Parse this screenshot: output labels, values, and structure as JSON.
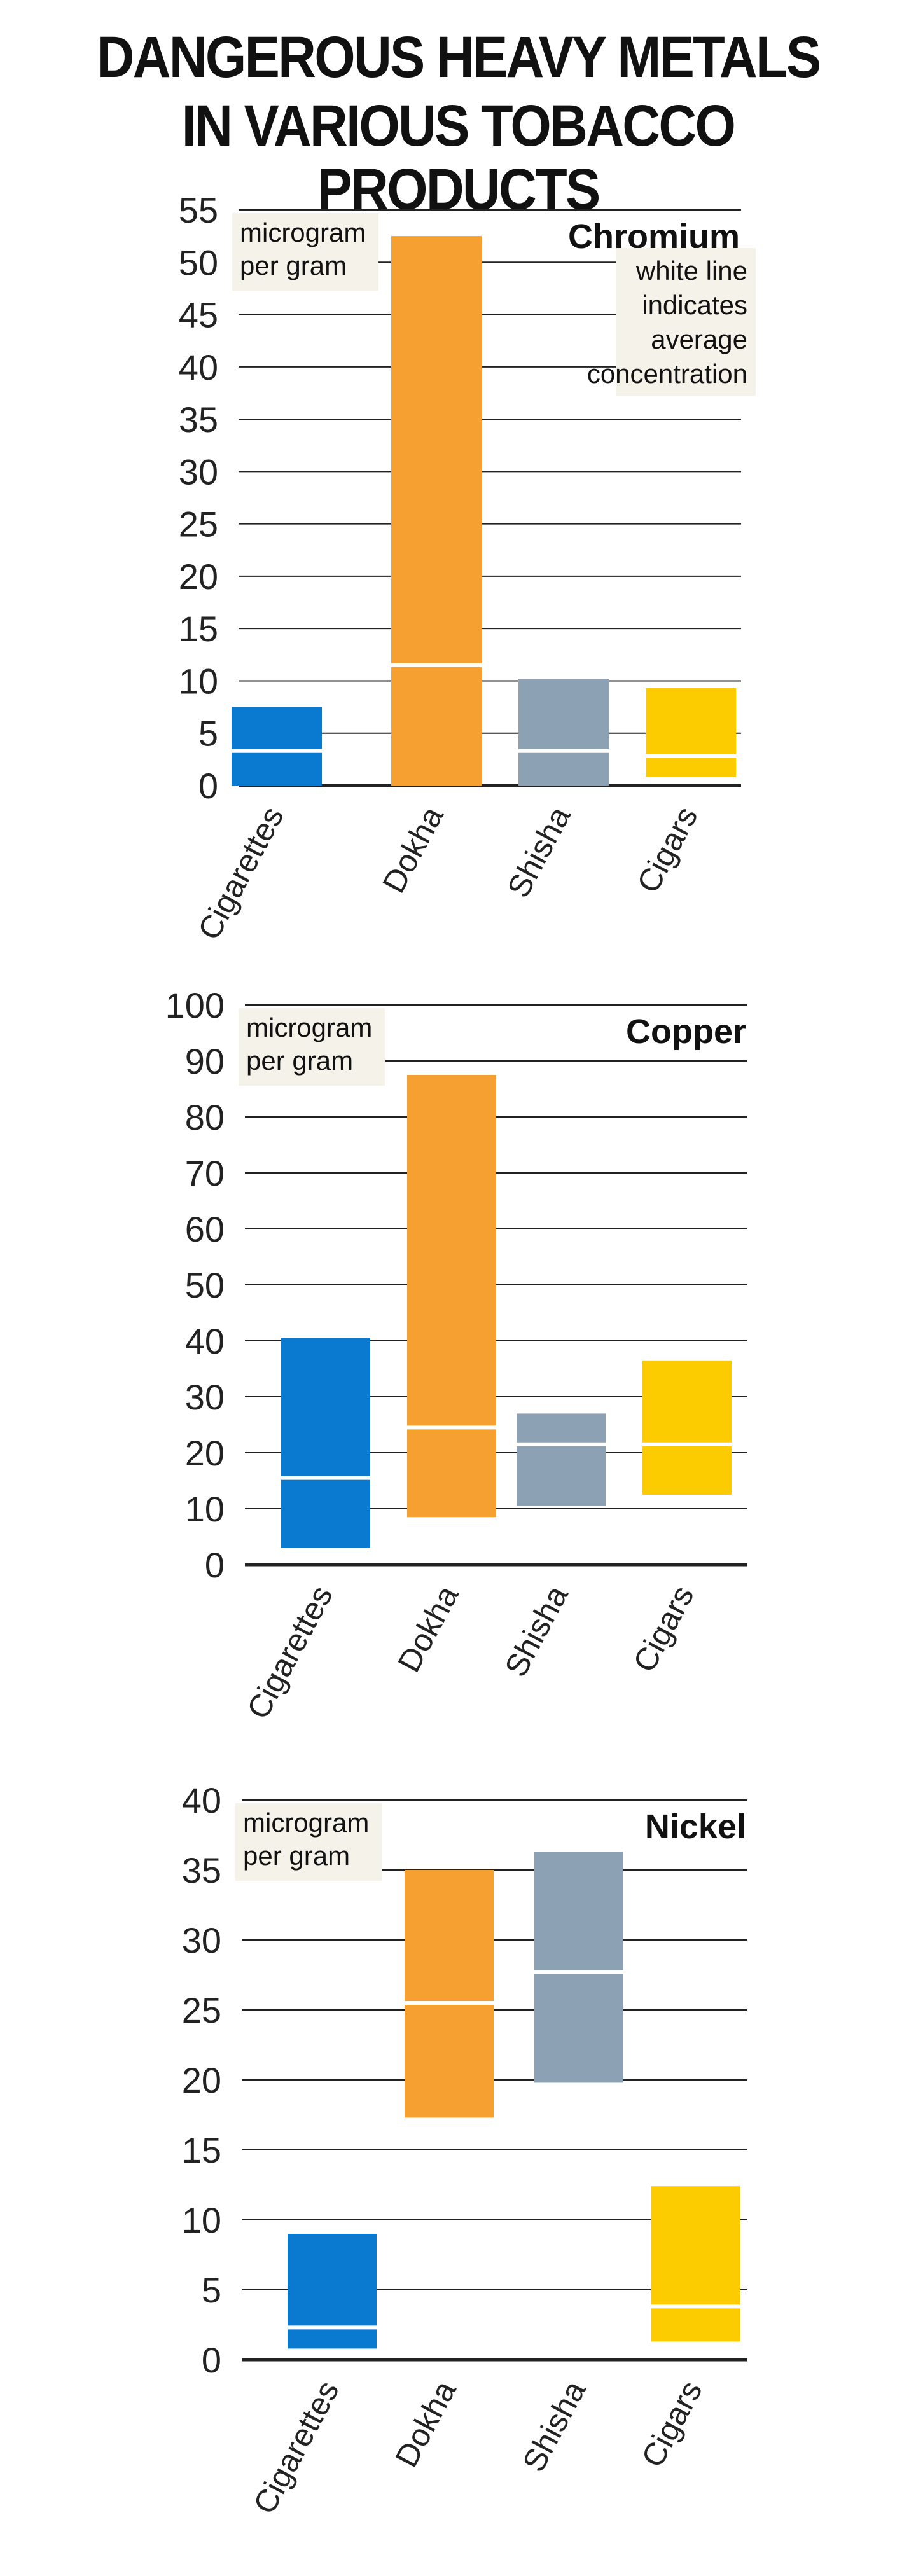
{
  "title": {
    "line1": "DANGEROUS HEAVY METALS",
    "line2": "IN VARIOUS TOBACCO PRODUCTS"
  },
  "colors": {
    "Cigarettes": "#0a7ad0",
    "Dokha": "#f5a031",
    "Shisha": "#8ca2b4",
    "Cigars": "#fccc00",
    "average_line": "#ffffff",
    "note_background": "#f5f2ea",
    "gridline": "#222222"
  },
  "chart_data": [
    {
      "type": "bar",
      "metal": "Chromium",
      "unit_label": [
        "microgram",
        "per gram"
      ],
      "note": [
        "white line",
        "indicates",
        "average",
        "concentration"
      ],
      "ylim": [
        0,
        55
      ],
      "yticks": [
        0,
        5,
        10,
        15,
        20,
        25,
        30,
        35,
        40,
        45,
        50,
        55
      ],
      "categories": [
        "Cigarettes",
        "Dokha",
        "Shisha",
        "Cigars"
      ],
      "ranges": [
        {
          "category": "Cigarettes",
          "min": 0,
          "max": 7.5,
          "average": 3.3
        },
        {
          "category": "Dokha",
          "min": 0,
          "max": 52.5,
          "average": 11.5
        },
        {
          "category": "Shisha",
          "min": 0,
          "max": 10.2,
          "average": 3.3
        },
        {
          "category": "Cigars",
          "min": 0.8,
          "max": 9.3,
          "average": 2.8
        }
      ]
    },
    {
      "type": "bar",
      "metal": "Copper",
      "unit_label": [
        "microgram",
        "per gram"
      ],
      "ylim": [
        0,
        100
      ],
      "yticks": [
        0,
        10,
        20,
        30,
        40,
        50,
        60,
        70,
        80,
        90,
        100
      ],
      "categories": [
        "Cigarettes",
        "Dokha",
        "Shisha",
        "Cigars"
      ],
      "ranges": [
        {
          "category": "Cigarettes",
          "min": 3,
          "max": 40.5,
          "average": 15.5
        },
        {
          "category": "Dokha",
          "min": 8.5,
          "max": 87.5,
          "average": 24.5
        },
        {
          "category": "Shisha",
          "min": 10.5,
          "max": 27,
          "average": 21.5
        },
        {
          "category": "Cigars",
          "min": 12.5,
          "max": 36.5,
          "average": 21.5
        }
      ]
    },
    {
      "type": "bar",
      "metal": "Nickel",
      "unit_label": [
        "microgram",
        "per gram"
      ],
      "ylim": [
        0,
        40
      ],
      "yticks": [
        0,
        5,
        10,
        15,
        20,
        25,
        30,
        35,
        40
      ],
      "categories": [
        "Cigarettes",
        "Dokha",
        "Shisha",
        "Cigars"
      ],
      "ranges": [
        {
          "category": "Cigarettes",
          "min": 0.8,
          "max": 9,
          "average": 2.3
        },
        {
          "category": "Dokha",
          "min": 17.3,
          "max": 35,
          "average": 25.5
        },
        {
          "category": "Shisha",
          "min": 19.8,
          "max": 36.3,
          "average": 27.7
        },
        {
          "category": "Cigars",
          "min": 1.3,
          "max": 12.4,
          "average": 3.8
        }
      ]
    }
  ]
}
